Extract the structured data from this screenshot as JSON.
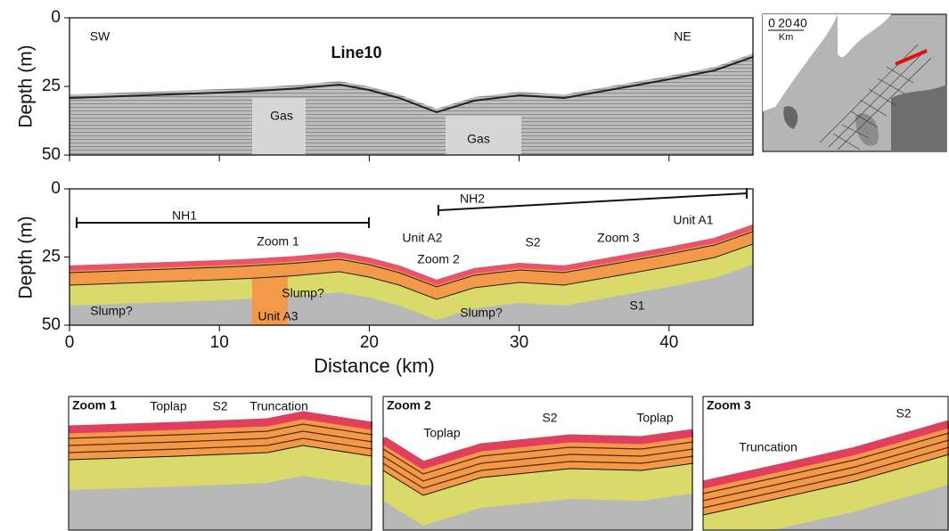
{
  "chart_data": [
    {
      "type": "profile",
      "title": "Line10",
      "ylabel": "Depth (m)",
      "ylim": [
        0,
        50
      ],
      "yticks": [
        0,
        25,
        50
      ],
      "xlim": [
        0,
        45.6
      ],
      "xticks": [
        0,
        10,
        20,
        30,
        40
      ],
      "annotations": [
        "SW",
        "NE",
        "Gas",
        "Gas"
      ]
    },
    {
      "type": "profile",
      "ylabel": "Depth (m)",
      "xlabel": "Distance (km)",
      "ylim": [
        0,
        50
      ],
      "yticks": [
        0,
        25,
        50
      ],
      "xlim": [
        0,
        45.6
      ],
      "xticks": [
        0,
        10,
        20,
        30,
        40
      ],
      "annotations": [
        "NH1",
        "NH2",
        "Zoom 1",
        "Unit A2",
        "Zoom 2",
        "S2",
        "Zoom 3",
        "Unit A1",
        "Slump?",
        "Slump?",
        "Unit A3",
        "Slump?",
        "S1"
      ]
    }
  ],
  "map": {
    "scale_ticks": [
      0,
      20,
      40
    ],
    "scale_unit": "Km"
  },
  "zooms": [
    {
      "title": "Zoom 1",
      "annotations": [
        "Toplap",
        "S2",
        "Truncation"
      ]
    },
    {
      "title": "Zoom 2",
      "annotations": [
        "Toplap",
        "S2",
        "Toplap"
      ]
    },
    {
      "title": "Zoom 3",
      "annotations": [
        "Truncation",
        "S2"
      ]
    }
  ]
}
